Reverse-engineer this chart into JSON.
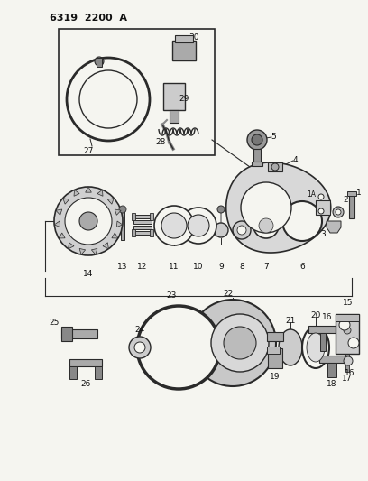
{
  "title": "6319 2200 A",
  "bg_color": "#f5f5f0",
  "line_color": "#2a2a2a",
  "text_color": "#111111",
  "figsize": [
    4.08,
    5.33
  ],
  "dpi": 100
}
